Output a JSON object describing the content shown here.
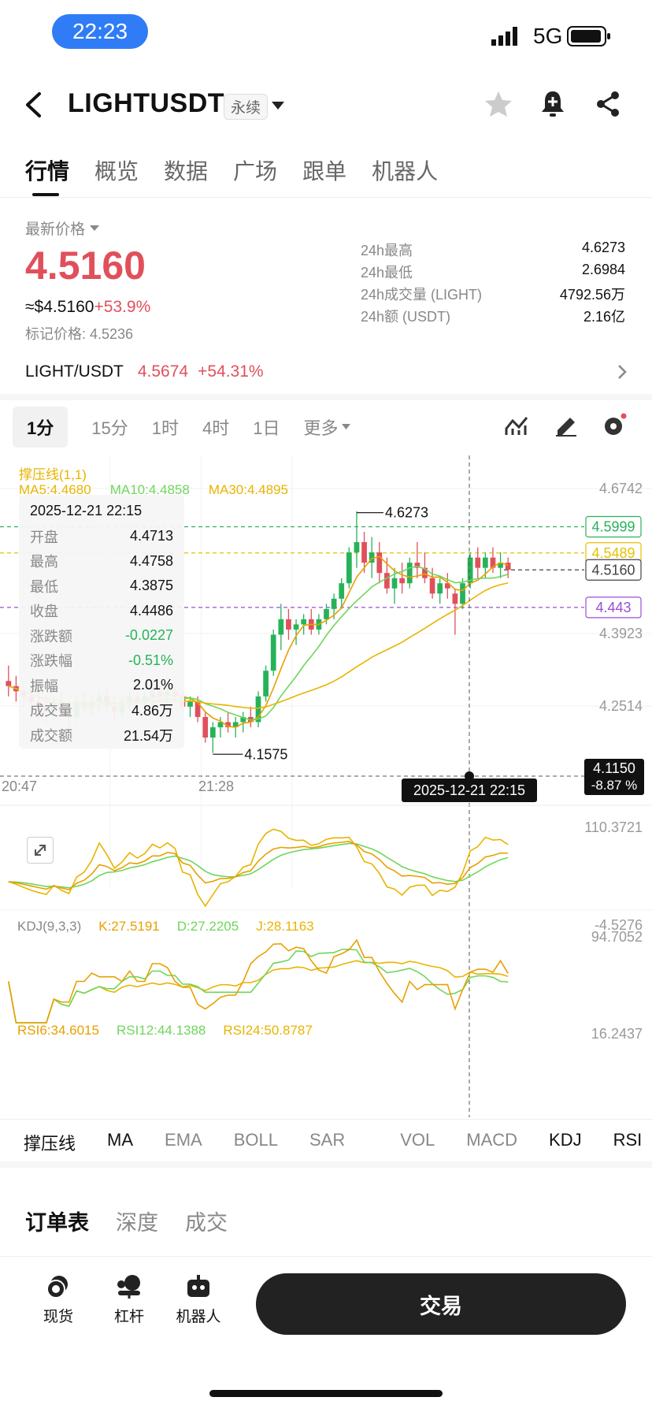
{
  "status_bar": {
    "time": "22:23",
    "network": "5G"
  },
  "header": {
    "title": "LIGHTUSDT",
    "badge": "永续"
  },
  "tabs": [
    "行情",
    "概览",
    "数据",
    "广场",
    "跟单",
    "机器人"
  ],
  "price": {
    "label": "最新价格",
    "last": "4.5160",
    "usd_approx": "≈$4.5160",
    "change_pct": "+53.9%",
    "mark_label": "标记价格: 4.5236"
  },
  "stats": [
    {
      "label": "24h最高",
      "value": "4.6273"
    },
    {
      "label": "24h最低",
      "value": "2.6984"
    },
    {
      "label": "24h成交量 (LIGHT)",
      "value": "4792.56万"
    },
    {
      "label": "24h额 (USDT)",
      "value": "2.16亿"
    }
  ],
  "spot_row": {
    "pair": "LIGHT/USDT",
    "price": "4.5674",
    "change": "+54.31%"
  },
  "periods": [
    "1分",
    "15分",
    "1时",
    "4时",
    "1日",
    "更多"
  ],
  "chart_legend": {
    "support_resistance": "撑压线(1,1)",
    "ma5": "MA5:4.4680",
    "ma10": "MA10:4.4858",
    "ma30": "MA30:4.4895"
  },
  "hover_info": {
    "date": "2025-12-21 22:15",
    "rows": [
      {
        "k": "开盘",
        "v": "4.4713"
      },
      {
        "k": "最高",
        "v": "4.4758"
      },
      {
        "k": "最低",
        "v": "4.3875"
      },
      {
        "k": "收盘",
        "v": "4.4486"
      },
      {
        "k": "涨跌额",
        "v": "-0.0227"
      },
      {
        "k": "涨跌幅",
        "v": "-0.51%"
      },
      {
        "k": "振幅",
        "v": "2.01%"
      },
      {
        "k": "成交量",
        "v": "4.86万"
      },
      {
        "k": "成交额",
        "v": "21.54万"
      }
    ]
  },
  "chart_data": {
    "type": "candlestick",
    "y_axis_labels": [
      "4.6742",
      "4.3923",
      "4.2514"
    ],
    "price_tags": [
      "4.5999",
      "4.5489",
      "4.5160",
      "4.443"
    ],
    "high_marker": "4.6273",
    "low_marker": "4.1575",
    "bottom_tag": {
      "price": "4.1150",
      "pct": "-8.87 %"
    },
    "x_labels": [
      "20:47",
      "21:28"
    ],
    "cursor_date": "2025-12-21 22:15",
    "ohlc": [
      [
        4.3,
        4.33,
        4.27,
        4.29
      ],
      [
        4.29,
        4.31,
        4.26,
        4.28
      ],
      [
        4.28,
        4.3,
        4.25,
        4.27
      ],
      [
        4.27,
        4.29,
        4.24,
        4.26
      ],
      [
        4.26,
        4.28,
        4.23,
        4.25
      ],
      [
        4.25,
        4.27,
        4.22,
        4.24
      ],
      [
        4.24,
        4.27,
        4.22,
        4.26
      ],
      [
        4.26,
        4.28,
        4.23,
        4.24
      ],
      [
        4.24,
        4.26,
        4.21,
        4.23
      ],
      [
        4.23,
        4.27,
        4.22,
        4.26
      ],
      [
        4.26,
        4.28,
        4.24,
        4.25
      ],
      [
        4.25,
        4.27,
        4.23,
        4.26
      ],
      [
        4.26,
        4.28,
        4.24,
        4.27
      ],
      [
        4.27,
        4.29,
        4.24,
        4.25
      ],
      [
        4.25,
        4.27,
        4.22,
        4.24
      ],
      [
        4.24,
        4.27,
        4.23,
        4.26
      ],
      [
        4.26,
        4.28,
        4.24,
        4.27
      ],
      [
        4.27,
        4.29,
        4.25,
        4.26
      ],
      [
        4.26,
        4.28,
        4.24,
        4.27
      ],
      [
        4.27,
        4.29,
        4.25,
        4.28
      ],
      [
        4.28,
        4.29,
        4.26,
        4.27
      ],
      [
        4.27,
        4.29,
        4.25,
        4.28
      ],
      [
        4.28,
        4.29,
        4.26,
        4.27
      ],
      [
        4.27,
        4.28,
        4.24,
        4.25
      ],
      [
        4.25,
        4.27,
        4.23,
        4.26
      ],
      [
        4.26,
        4.27,
        4.22,
        4.23
      ],
      [
        4.23,
        4.24,
        4.18,
        4.19
      ],
      [
        4.19,
        4.22,
        4.16,
        4.21
      ],
      [
        4.21,
        4.23,
        4.19,
        4.22
      ],
      [
        4.22,
        4.24,
        4.2,
        4.21
      ],
      [
        4.21,
        4.23,
        4.19,
        4.22
      ],
      [
        4.22,
        4.24,
        4.2,
        4.23
      ],
      [
        4.23,
        4.25,
        4.21,
        4.22
      ],
      [
        4.22,
        4.28,
        4.21,
        4.27
      ],
      [
        4.27,
        4.33,
        4.26,
        4.32
      ],
      [
        4.32,
        4.4,
        4.31,
        4.39
      ],
      [
        4.39,
        4.45,
        4.36,
        4.42
      ],
      [
        4.42,
        4.44,
        4.38,
        4.4
      ],
      [
        4.4,
        4.42,
        4.37,
        4.41
      ],
      [
        4.41,
        4.43,
        4.39,
        4.42
      ],
      [
        4.42,
        4.44,
        4.39,
        4.4
      ],
      [
        4.4,
        4.43,
        4.39,
        4.42
      ],
      [
        4.42,
        4.45,
        4.41,
        4.44
      ],
      [
        4.44,
        4.47,
        4.42,
        4.46
      ],
      [
        4.46,
        4.5,
        4.44,
        4.49
      ],
      [
        4.49,
        4.56,
        4.48,
        4.55
      ],
      [
        4.55,
        4.63,
        4.52,
        4.57
      ],
      [
        4.57,
        4.59,
        4.51,
        4.53
      ],
      [
        4.53,
        4.58,
        4.5,
        4.55
      ],
      [
        4.55,
        4.57,
        4.49,
        4.51
      ],
      [
        4.51,
        4.54,
        4.47,
        4.48
      ],
      [
        4.48,
        4.52,
        4.45,
        4.5
      ],
      [
        4.5,
        4.53,
        4.47,
        4.49
      ],
      [
        4.49,
        4.54,
        4.48,
        4.53
      ],
      [
        4.53,
        4.57,
        4.5,
        4.52
      ],
      [
        4.52,
        4.55,
        4.49,
        4.5
      ],
      [
        4.5,
        4.52,
        4.46,
        4.47
      ],
      [
        4.47,
        4.5,
        4.45,
        4.49
      ],
      [
        4.49,
        4.51,
        4.46,
        4.48
      ],
      [
        4.47,
        4.48,
        4.39,
        4.45
      ],
      [
        4.45,
        4.5,
        4.44,
        4.49
      ],
      [
        4.49,
        4.55,
        4.48,
        4.54
      ],
      [
        4.54,
        4.56,
        4.5,
        4.52
      ],
      [
        4.52,
        4.55,
        4.5,
        4.54
      ],
      [
        4.54,
        4.56,
        4.51,
        4.52
      ],
      [
        4.52,
        4.55,
        4.5,
        4.53
      ],
      [
        4.53,
        4.54,
        4.5,
        4.516
      ]
    ],
    "kdj_legend": {
      "name": "KDJ(9,3,3)",
      "k": "K:27.5191",
      "d": "D:27.2205",
      "j": "J:28.1163"
    },
    "kdj_axis": [
      "110.3721",
      "-4.5276"
    ],
    "rsi_legend": {
      "r6": "RSI6:34.6015",
      "r12": "RSI12:44.1388",
      "r24": "RSI24:50.8787"
    },
    "rsi_axis": [
      "94.7052",
      "16.2437"
    ]
  },
  "indicators": [
    "撑压线",
    "MA",
    "EMA",
    "BOLL",
    "SAR",
    "VOL",
    "MACD",
    "KDJ",
    "RSI"
  ],
  "book_tabs": [
    "订单表",
    "深度",
    "成交"
  ],
  "bottom_nav": [
    "现货",
    "杠杆",
    "机器人"
  ],
  "trade_button": "交易"
}
